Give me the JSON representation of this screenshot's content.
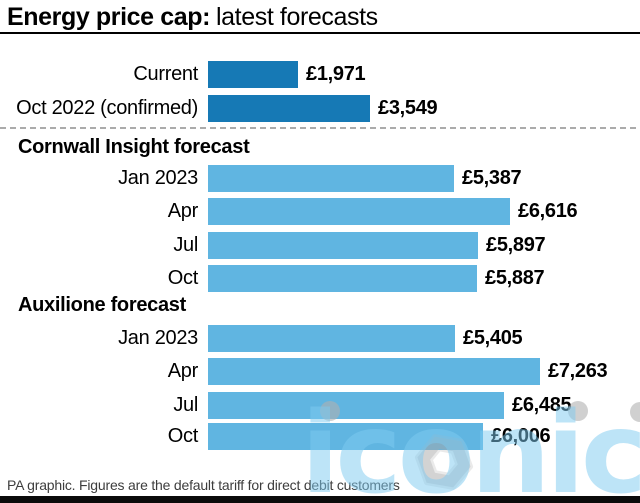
{
  "title": {
    "bold": "Energy price cap:",
    "regular": "latest forecasts"
  },
  "footer": "PA graphic. Figures are the default tariff for direct debit customers",
  "watermark": {
    "text": "iconic"
  },
  "colors": {
    "bar_dark": "#1679b5",
    "bar_light": "#60b5e1",
    "watermark_blue": "#7ecbf1",
    "watermark_grey": "#b0b0b0",
    "rule_black": "#000000"
  },
  "chart_data": {
    "type": "bar",
    "orientation": "horizontal",
    "unit": "GBP",
    "title": "Energy price cap: latest forecasts",
    "value_range": [
      0,
      7263
    ],
    "groups": [
      {
        "heading": "",
        "bar_style": "dark",
        "rows": [
          {
            "label": "Current",
            "value": 1971,
            "value_label": "£1,971"
          },
          {
            "label": "Oct 2022 (confirmed)",
            "value": 3549,
            "value_label": "£3,549"
          }
        ]
      },
      {
        "heading": "Cornwall Insight forecast",
        "bar_style": "light",
        "rows": [
          {
            "label": "Jan 2023",
            "value": 5387,
            "value_label": "£5,387"
          },
          {
            "label": "Apr",
            "value": 6616,
            "value_label": "£6,616"
          },
          {
            "label": "Jul",
            "value": 5897,
            "value_label": "£5,897"
          },
          {
            "label": "Oct",
            "value": 5887,
            "value_label": "£5,887"
          }
        ]
      },
      {
        "heading": "Auxilione forecast",
        "bar_style": "light",
        "rows": [
          {
            "label": "Jan 2023",
            "value": 5405,
            "value_label": "£5,405"
          },
          {
            "label": "Apr",
            "value": 7263,
            "value_label": "£7,263"
          },
          {
            "label": "Jul",
            "value": 6485,
            "value_label": "£6,485"
          },
          {
            "label": "Oct",
            "value": 6006,
            "value_label": "£6,006"
          }
        ]
      }
    ]
  }
}
